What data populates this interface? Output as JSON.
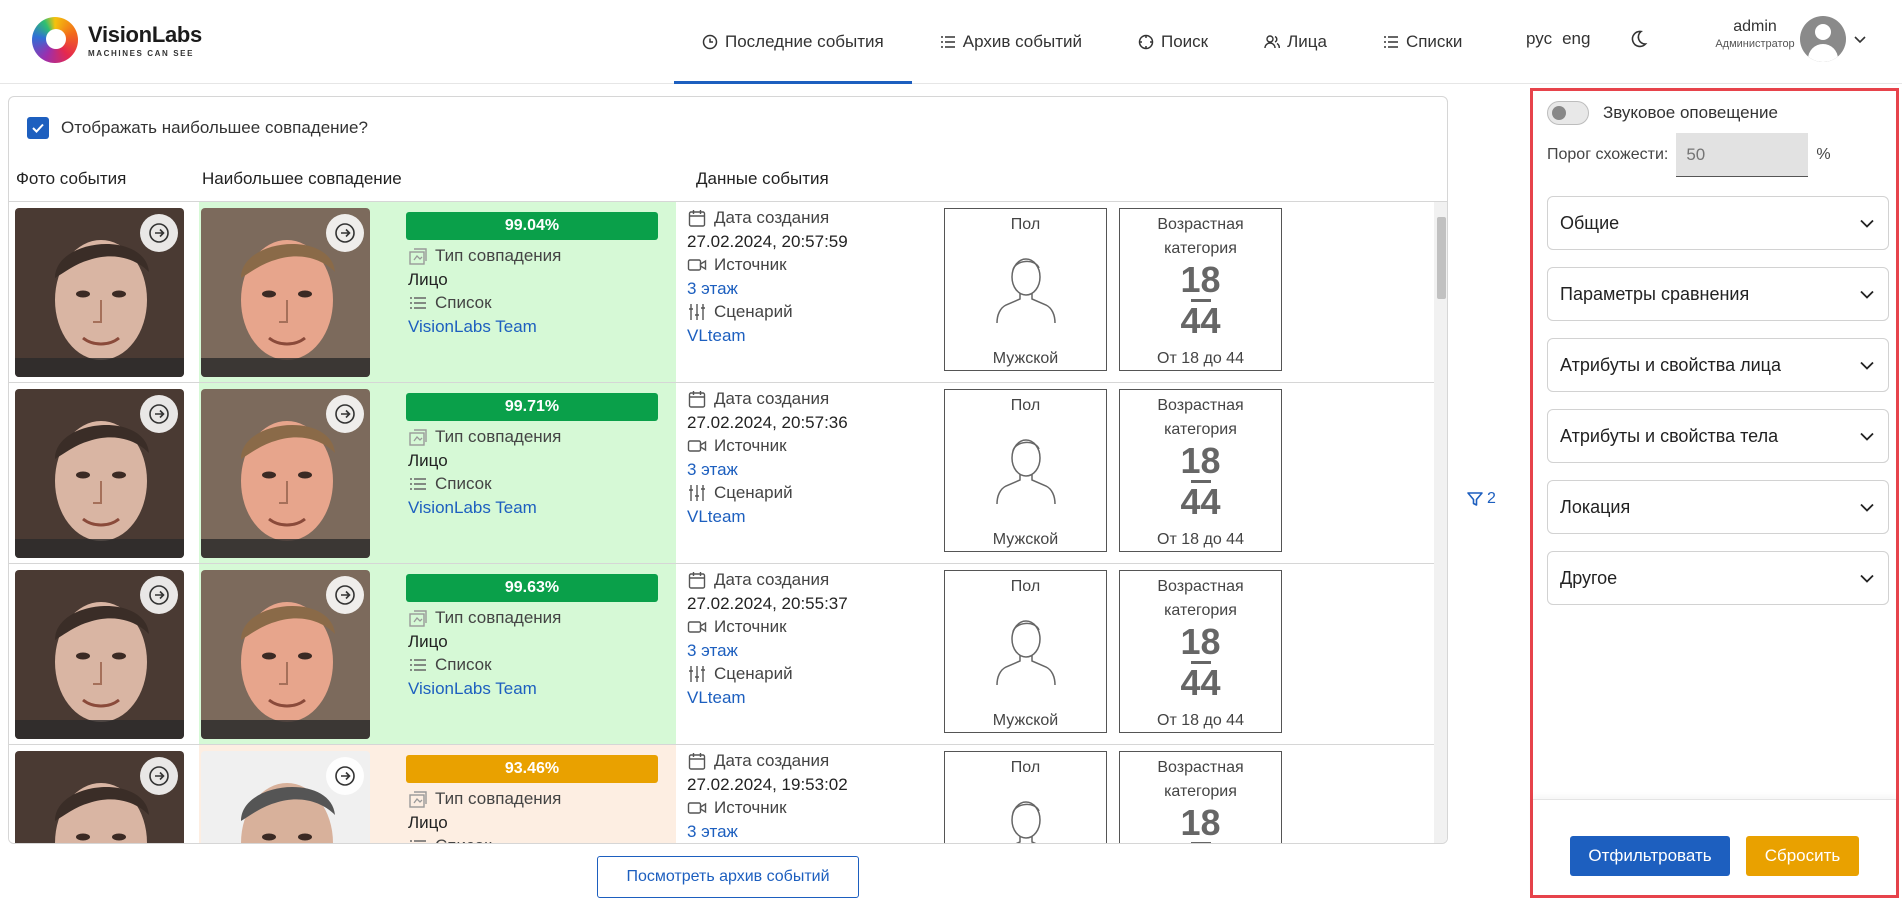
{
  "brand": {
    "name": "VisionLabs",
    "tagline": "MACHINES CAN SEE"
  },
  "nav": {
    "items": [
      {
        "label": "Последние события",
        "icon": "clock-icon",
        "active": true
      },
      {
        "label": "Архив событий",
        "icon": "list-icon",
        "active": false
      },
      {
        "label": "Поиск",
        "icon": "target-icon",
        "active": false
      },
      {
        "label": "Лица",
        "icon": "users-icon",
        "active": false
      },
      {
        "label": "Списки",
        "icon": "list-icon",
        "active": false
      }
    ],
    "lang_ru": "рус",
    "lang_en": "eng"
  },
  "user": {
    "name": "admin",
    "role": "Администратор"
  },
  "table": {
    "show_best_match_label": "Отображать наибольшее совпадение?",
    "show_best_match_checked": true,
    "headers": {
      "event_photo": "Фото события",
      "best_match": "Наибольшее совпадение",
      "event_data": "Данные события"
    },
    "labels": {
      "match_type": "Тип совпадения",
      "list": "Список",
      "created": "Дата создания",
      "source": "Источник",
      "scenario": "Сценарий",
      "gender": "Пол",
      "age_category": "Возрастная категория"
    },
    "rows": [
      {
        "score": "99.04%",
        "score_color": "#0aa04a",
        "match_type": "Лицо",
        "list": "VisionLabs Team",
        "created": "27.02.2024, 20:57:59",
        "source": "3 этаж",
        "scenario": "VLteam",
        "gender": "Мужской",
        "age_from": "18",
        "age_to": "44",
        "age_text": "От 18 до 44"
      },
      {
        "score": "99.71%",
        "score_color": "#0aa04a",
        "match_type": "Лицо",
        "list": "VisionLabs Team",
        "created": "27.02.2024, 20:57:36",
        "source": "3 этаж",
        "scenario": "VLteam",
        "gender": "Мужской",
        "age_from": "18",
        "age_to": "44",
        "age_text": "От 18 до 44"
      },
      {
        "score": "99.63%",
        "score_color": "#0aa04a",
        "match_type": "Лицо",
        "list": "VisionLabs Team",
        "created": "27.02.2024, 20:55:37",
        "source": "3 этаж",
        "scenario": "VLteam",
        "gender": "Мужской",
        "age_from": "18",
        "age_to": "44",
        "age_text": "От 18 до 44"
      },
      {
        "score": "93.46%",
        "score_color": "#e9a100",
        "match_type": "Лицо",
        "list": "Список",
        "created": "27.02.2024, 19:53:02",
        "source": "3 этаж",
        "scenario": "",
        "gender": "",
        "age_from": "18",
        "age_to": "",
        "age_text": ""
      }
    ]
  },
  "filters_indicator": "2",
  "archive_button": "Посмотреть архив событий",
  "sidebar": {
    "sound_label": "Звуковое оповещение",
    "sound_on": false,
    "threshold_label": "Порог схожести:",
    "threshold_placeholder": "50",
    "threshold_unit": "%",
    "sections": [
      "Общие",
      "Параметры сравнения",
      "Атрибуты и свойства лица",
      "Атрибуты и свойства тела",
      "Локация",
      "Другое"
    ],
    "apply_label": "Отфильтровать",
    "reset_label": "Сбросить"
  },
  "colors": {
    "accent": "#1d5fbf",
    "match_green": "#0aa04a",
    "match_orange": "#e9a100",
    "row_green": "#d6f9d6",
    "row_peach": "#fdeee2",
    "highlight_border": "#e7434b"
  }
}
